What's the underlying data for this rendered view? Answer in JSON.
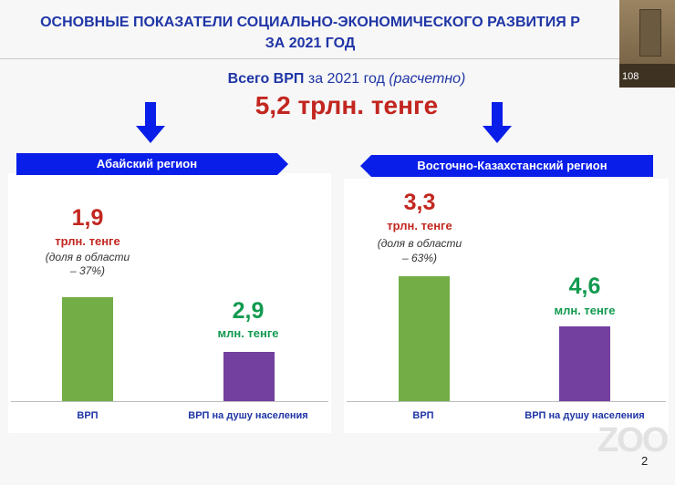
{
  "title_line1": "ОСНОВНЫЕ ПОКАЗАТЕЛИ СОЦИАЛЬНО-ЭКОНОМИЧЕСКОГО РАЗВИТИЯ Р",
  "title_line2": "ЗА 2021 ГОД",
  "camera_number": "108",
  "total": {
    "label_bold": "Всего ВРП",
    "label_rest": " за 2021 год ",
    "label_italic": "(расчетно)",
    "value": "5,2 трлн. тенге"
  },
  "colors": {
    "title": "#1f35a6",
    "accent_red": "#c2261f",
    "accent_green": "#129a4f",
    "banner": "#0a1eea",
    "bar_grp": "#72ad46",
    "bar_per_capita": "#7440a0"
  },
  "chart_data": [
    {
      "type": "bar",
      "region": "Абайский регион",
      "categories": [
        "ВРП",
        "ВРП на душу населения"
      ],
      "values": [
        1.9,
        2.9
      ],
      "value_labels": [
        "1,9",
        "2,9"
      ],
      "units": [
        "трлн. тенге",
        "млн. тенге"
      ],
      "share_note": [
        "(доля в области",
        "– 37%)"
      ]
    },
    {
      "type": "bar",
      "region": "Восточно-Казахстанский регион",
      "categories": [
        "ВРП",
        "ВРП на душу населения"
      ],
      "values": [
        3.3,
        4.6
      ],
      "value_labels": [
        "3,3",
        "4,6"
      ],
      "units": [
        "трлн. тенге",
        "млн. тенге"
      ],
      "share_note": [
        "(доля в области",
        "– 63%)"
      ]
    }
  ],
  "watermark": "ZOO",
  "page_number": "2"
}
